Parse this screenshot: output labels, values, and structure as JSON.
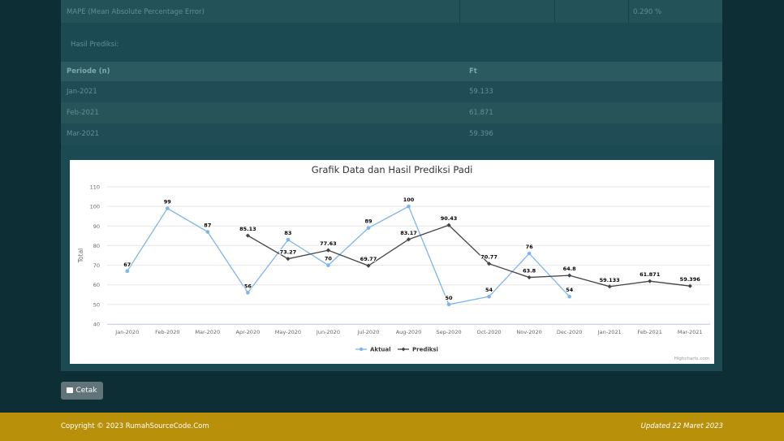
{
  "table": {
    "mape_label": "MAPE (Mean Absolute Percentage Error)",
    "mape_value": "0.290 %",
    "caption": "Hasil Prediksi:",
    "headers": [
      "Periode (n)",
      "Ft"
    ],
    "rows": [
      [
        "Jan-2021",
        "59.133"
      ],
      [
        "Feb-2021",
        "61.871"
      ],
      [
        "Mar-2021",
        "59.396"
      ]
    ]
  },
  "chart_data": {
    "type": "line",
    "title": "Grafik Data dan Hasil Prediksi Padi",
    "xlabel": "",
    "ylabel": "Total",
    "ylim": [
      40,
      110
    ],
    "yticks": [
      40,
      50,
      60,
      70,
      80,
      90,
      100,
      110
    ],
    "categories": [
      "Jan-2020",
      "Feb-2020",
      "Mar-2020",
      "Apr-2020",
      "May-2020",
      "Jun-2020",
      "Jul-2020",
      "Aug-2020",
      "Sep-2020",
      "Oct-2020",
      "Nov-2020",
      "Dec-2020",
      "Jan-2021",
      "Feb-2021",
      "Mar-2021"
    ],
    "series": [
      {
        "name": "Aktual",
        "color": "#7cb5ec",
        "values": [
          67,
          99,
          87,
          56,
          83,
          70,
          89,
          100,
          50,
          54,
          76,
          54,
          null,
          null,
          null
        ]
      },
      {
        "name": "Prediksi",
        "color": "#434348",
        "values": [
          null,
          null,
          null,
          85.13,
          73.27,
          77.63,
          69.77,
          83.17,
          90.43,
          70.77,
          63.8,
          64.8,
          59.133,
          61.871,
          59.396
        ]
      }
    ],
    "legend": "bottom-center",
    "credit": "Highcharts.com"
  },
  "print_button": "Cetak",
  "footer": {
    "copyright": "Copyright © 2023 RumahSourceCode.Com",
    "updated": "Updated 22 Maret 2023"
  }
}
